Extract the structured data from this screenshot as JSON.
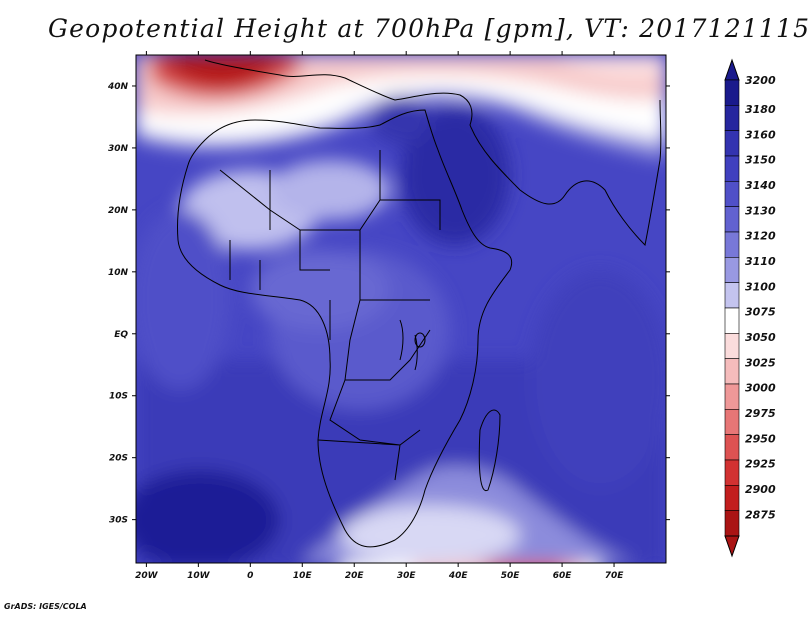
{
  "title": "Geopotential Height at 700hPa [gpm], VT: 2017121115",
  "credit": "GrADS: IGES/COLA",
  "map": {
    "lat_ticks": [
      "40N",
      "30N",
      "20N",
      "10N",
      "EQ",
      "10S",
      "20S",
      "30S"
    ],
    "lon_ticks": [
      "20W",
      "10W",
      "0",
      "10E",
      "20E",
      "30E",
      "40E",
      "50E",
      "60E",
      "70E"
    ],
    "lon_range": [
      -22,
      80
    ],
    "lat_range": [
      -37,
      45
    ]
  },
  "colorbar": {
    "levels": [
      "3200",
      "3180",
      "3160",
      "3150",
      "3140",
      "3130",
      "3120",
      "3110",
      "3100",
      "3075",
      "3050",
      "3025",
      "3000",
      "2975",
      "2950",
      "2925",
      "2900",
      "2875"
    ],
    "colors": [
      "#1a1a8c",
      "#26269e",
      "#3333b0",
      "#4040bf",
      "#5050c8",
      "#6262d0",
      "#7878d8",
      "#9999e2",
      "#c4c4ef",
      "#ffffff",
      "#fbdcdc",
      "#f5bcbc",
      "#ef9898",
      "#e77676",
      "#dd5252",
      "#d23232",
      "#c21e1e",
      "#aa1414"
    ]
  }
}
